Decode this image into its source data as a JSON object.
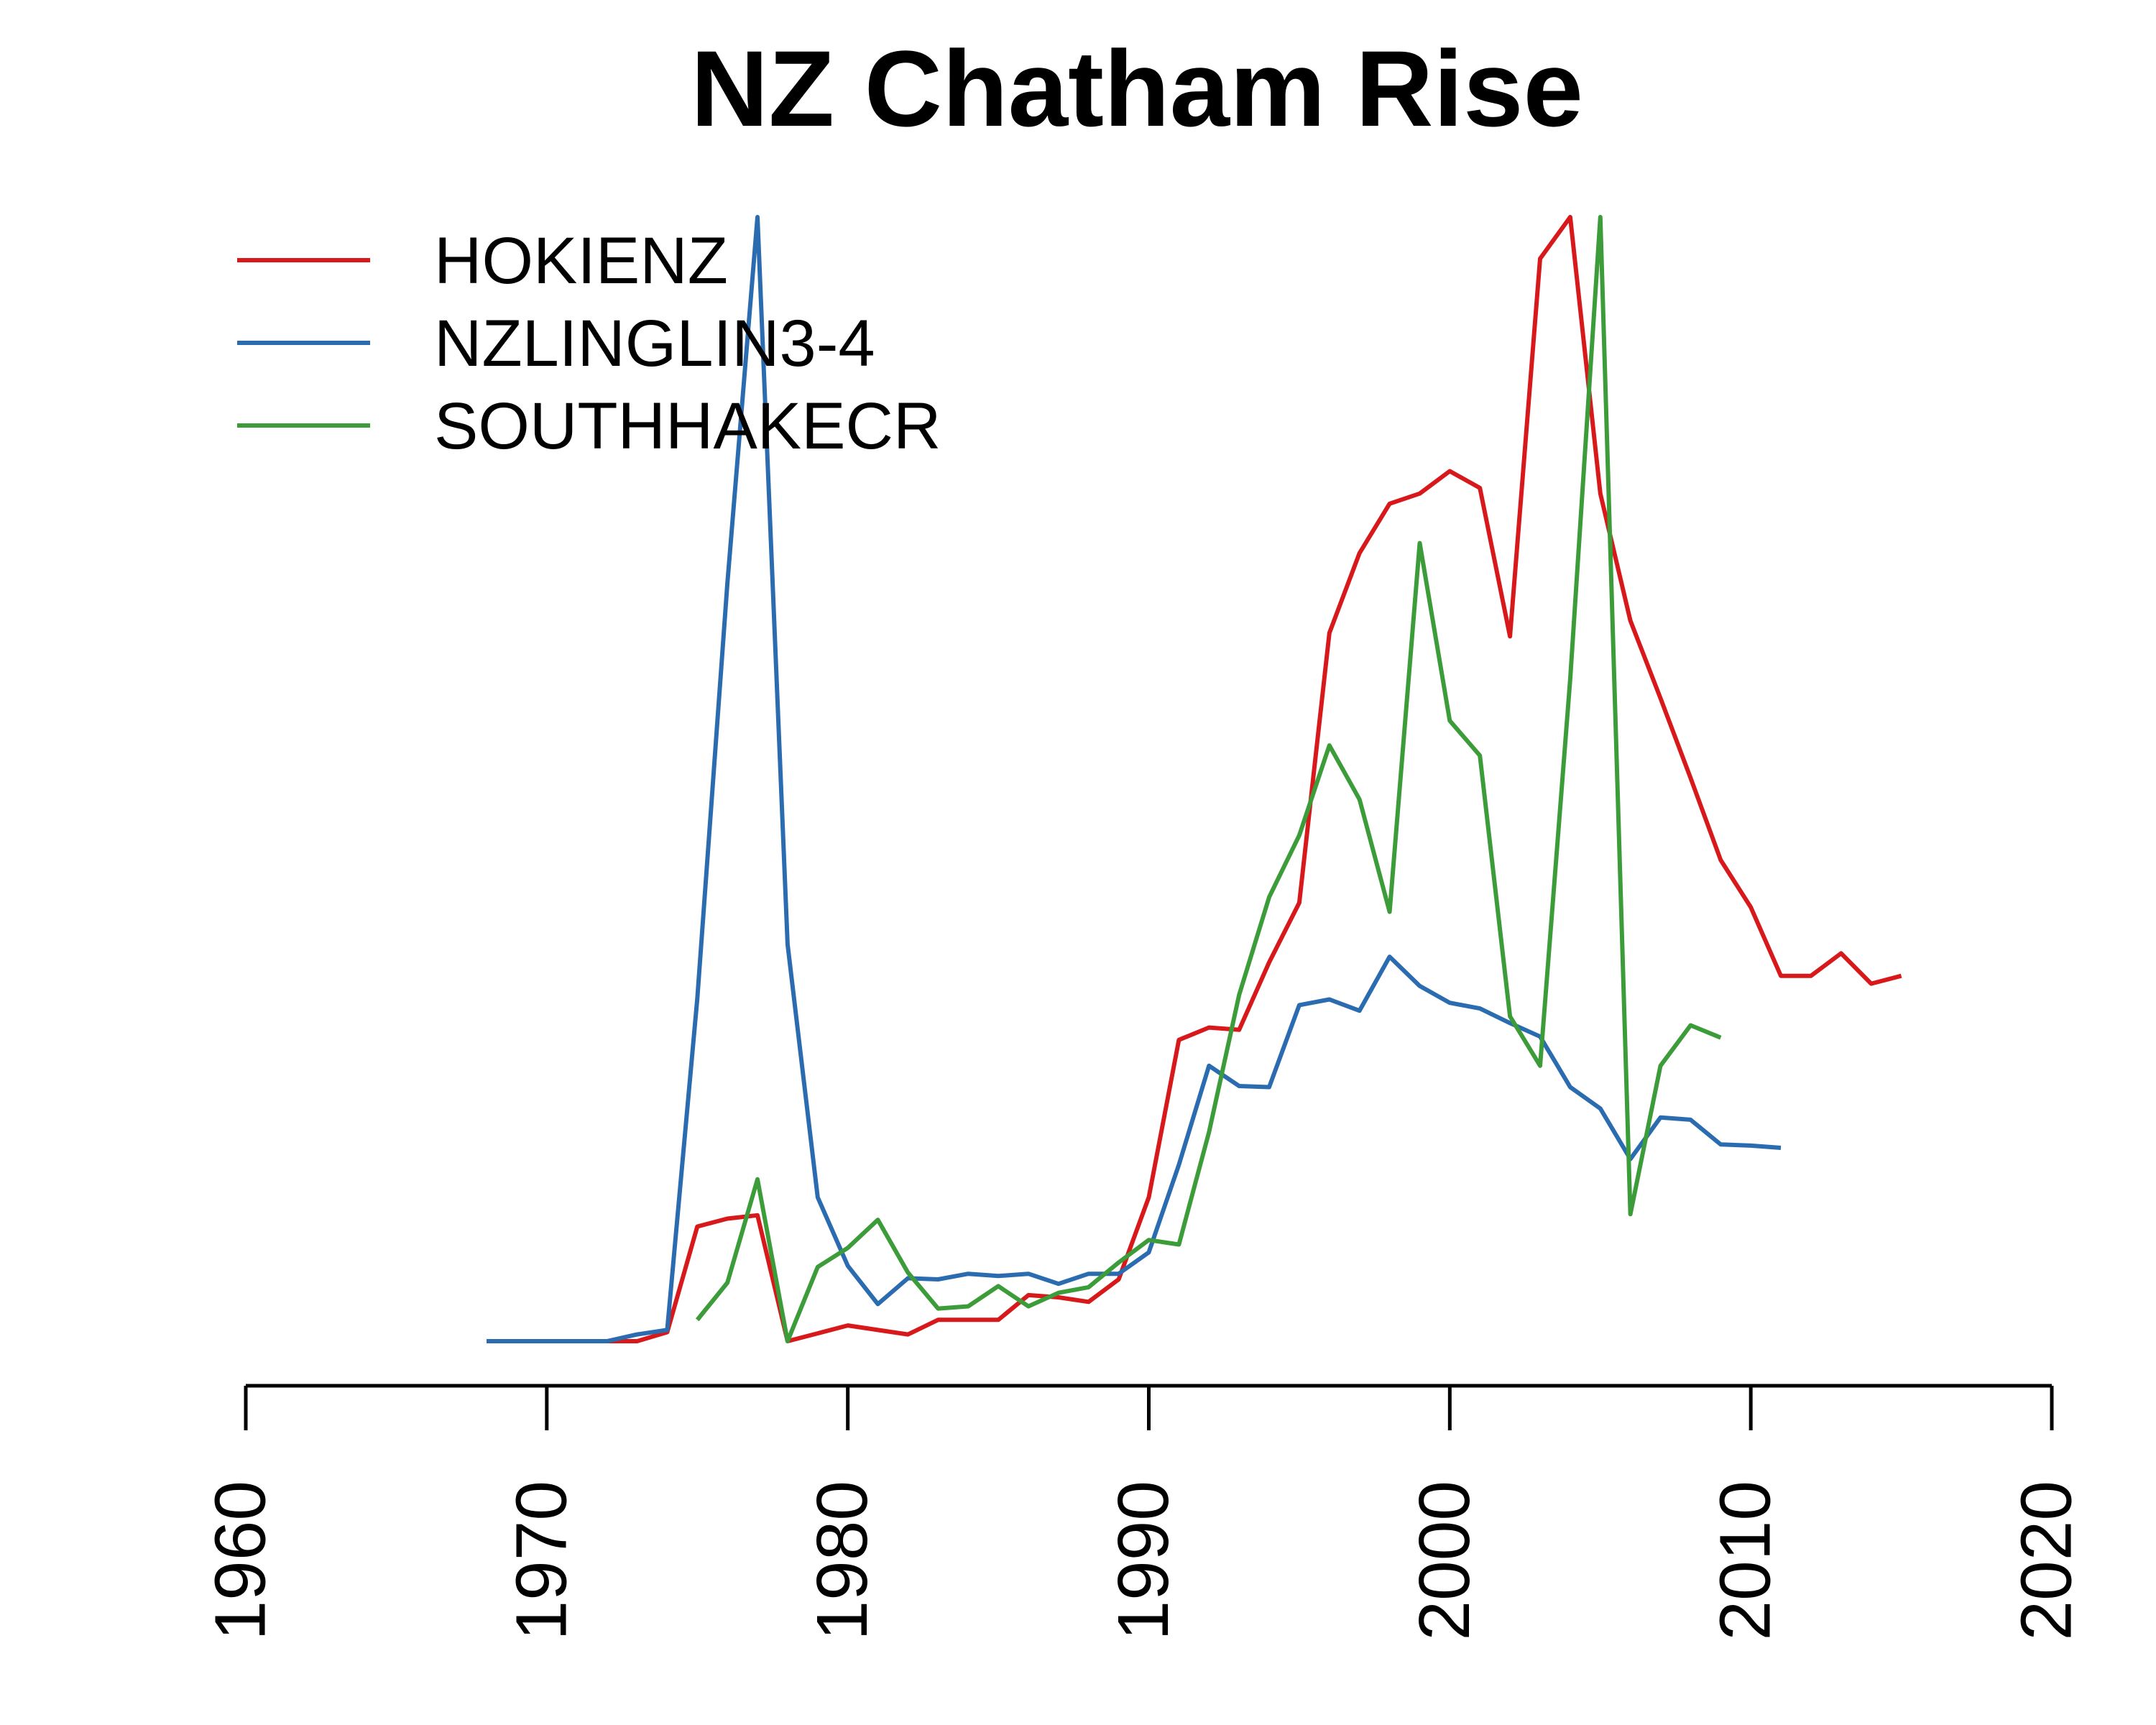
{
  "chart_data": {
    "type": "line",
    "title": "NZ Chatham Rise",
    "xlabel": "",
    "ylabel": "",
    "xlim": [
      1960,
      2020
    ],
    "ylim": [
      0,
      1
    ],
    "x_ticks": [
      "1960",
      "1970",
      "1980",
      "1990",
      "2000",
      "2010",
      "2020"
    ],
    "y_axis_visible": false,
    "grid": false,
    "legend_position": "top-left",
    "series": [
      {
        "name": "HOKIENZ",
        "color": "#d7191c",
        "x": [
          1968,
          1969,
          1970,
          1971,
          1972,
          1973,
          1974,
          1975,
          1976,
          1977,
          1978,
          1979,
          1980,
          1981,
          1982,
          1983,
          1984,
          1985,
          1986,
          1987,
          1988,
          1989,
          1990,
          1991,
          1992,
          1993,
          1994,
          1995,
          1996,
          1997,
          1998,
          1999,
          2000,
          2001,
          2002,
          2003,
          2004,
          2005,
          2006,
          2007,
          2008,
          2009,
          2010,
          2011,
          2012,
          2013,
          2014,
          2015
        ],
        "values": [
          0,
          0,
          0,
          0,
          0,
          0,
          0.008,
          0.102,
          0.109,
          0.112,
          0,
          0.007,
          0.014,
          0.01,
          0.006,
          0.019,
          0.019,
          0.019,
          0.041,
          0.039,
          0.035,
          0.055,
          0.128,
          0.268,
          0.279,
          0.277,
          0.337,
          0.39,
          0.63,
          0.701,
          0.745,
          0.754,
          0.774,
          0.759,
          0.627,
          0.963,
          1,
          0.754,
          0.641,
          0.572,
          0.501,
          0.428,
          0.386,
          0.325,
          0.325,
          0.345,
          0.318,
          0.325
        ]
      },
      {
        "name": "NZLINGLIN3-4",
        "color": "#2b6cb0",
        "x": [
          1968,
          1969,
          1970,
          1971,
          1972,
          1973,
          1974,
          1975,
          1976,
          1977,
          1978,
          1979,
          1980,
          1981,
          1982,
          1983,
          1984,
          1985,
          1986,
          1987,
          1988,
          1989,
          1990,
          1991,
          1992,
          1993,
          1994,
          1995,
          1996,
          1997,
          1998,
          1999,
          2000,
          2001,
          2002,
          2003,
          2004,
          2005,
          2006,
          2007,
          2008,
          2009,
          2010,
          2011
        ],
        "values": [
          0,
          0,
          0,
          0,
          0,
          0.006,
          0.01,
          0.305,
          0.674,
          1,
          0.353,
          0.128,
          0.067,
          0.033,
          0.056,
          0.055,
          0.06,
          0.058,
          0.06,
          0.051,
          0.06,
          0.06,
          0.079,
          0.157,
          0.245,
          0.227,
          0.226,
          0.299,
          0.304,
          0.294,
          0.342,
          0.316,
          0.301,
          0.296,
          0.283,
          0.271,
          0.226,
          0.207,
          0.162,
          0.199,
          0.197,
          0.175,
          0.174,
          0.172
        ]
      },
      {
        "name": "SOUTHHAKECR",
        "color": "#3d9c3a",
        "x": [
          1975,
          1976,
          1977,
          1978,
          1979,
          1980,
          1981,
          1982,
          1983,
          1984,
          1985,
          1986,
          1987,
          1988,
          1989,
          1990,
          1991,
          1992,
          1993,
          1994,
          1995,
          1996,
          1997,
          1998,
          1999,
          2000,
          2001,
          2002,
          2003,
          2004,
          2005,
          2006,
          2007,
          2008,
          2009
        ],
        "values": [
          0.019,
          0.052,
          0.144,
          0,
          0.066,
          0.083,
          0.108,
          0.061,
          0.029,
          0.031,
          0.049,
          0.031,
          0.043,
          0.048,
          0.07,
          0.09,
          0.086,
          0.186,
          0.308,
          0.395,
          0.45,
          0.53,
          0.482,
          0.382,
          0.71,
          0.552,
          0.521,
          0.289,
          0.245,
          0.589,
          1,
          0.113,
          0.245,
          0.281,
          0.27
        ]
      }
    ]
  }
}
